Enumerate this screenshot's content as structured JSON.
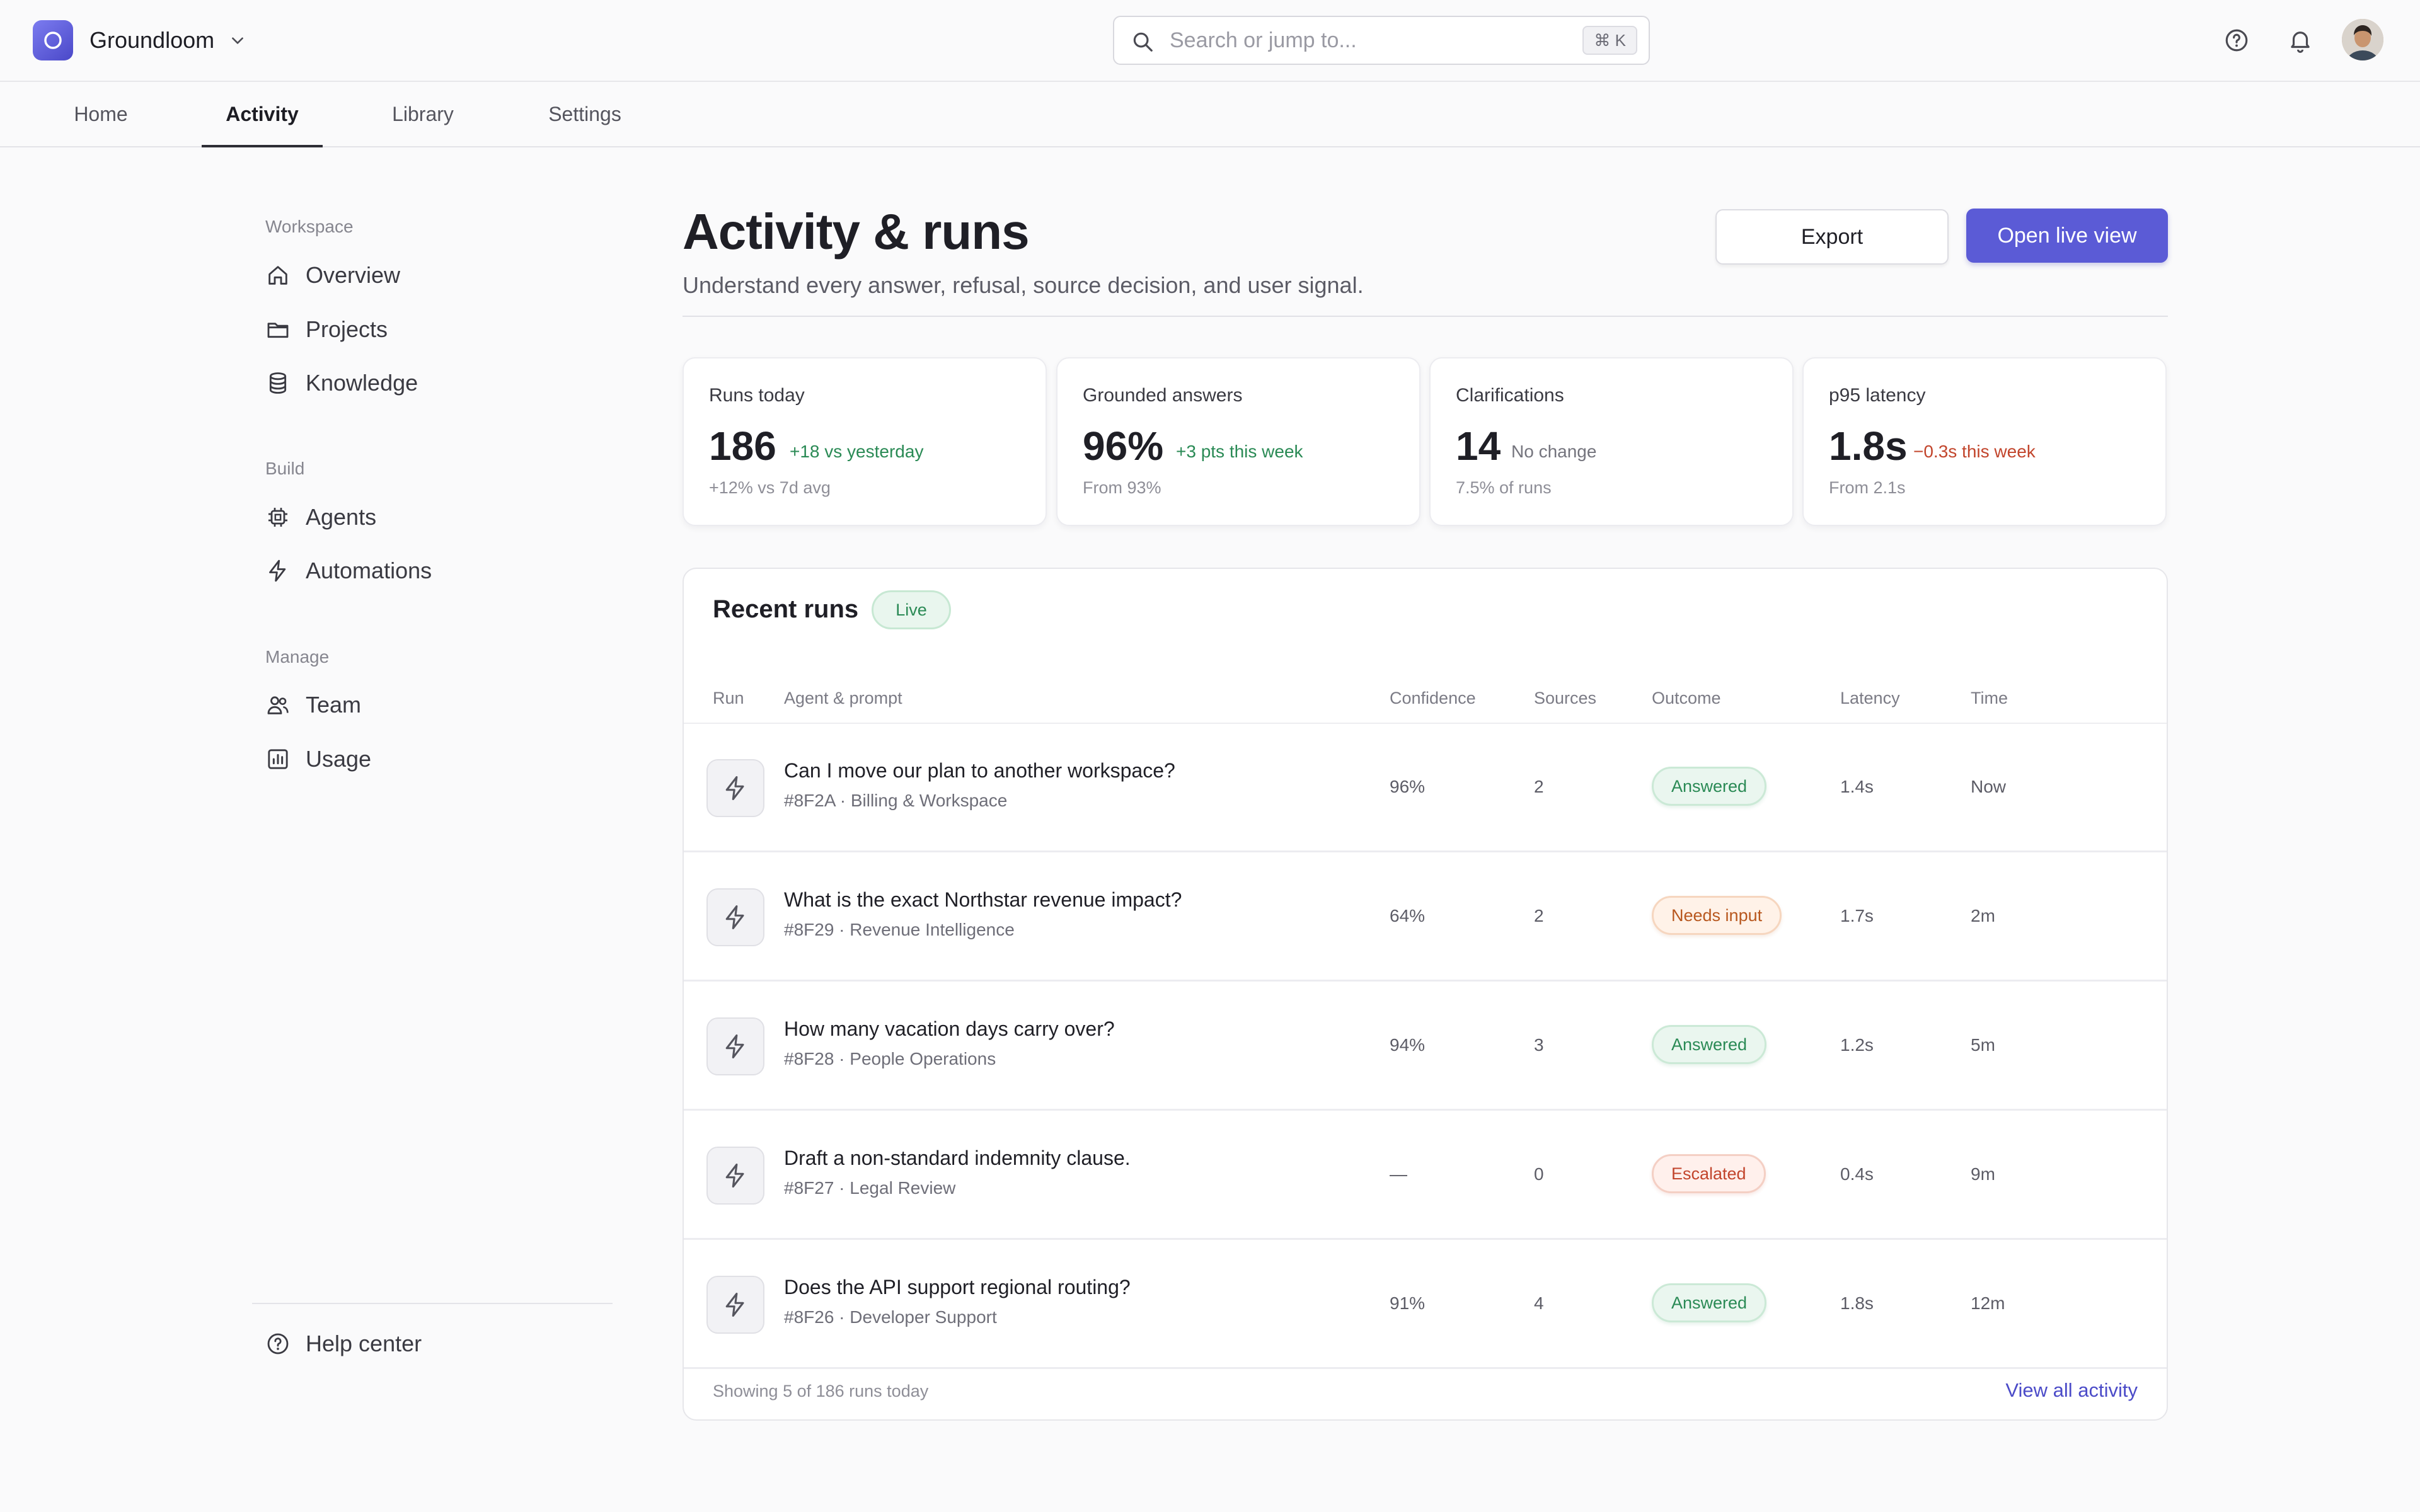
{
  "app": {
    "name": "Groundloom",
    "search_placeholder": "Search or jump to...",
    "search_shortcut": "⌘ K"
  },
  "tabs": [
    {
      "label": "Home",
      "active": false
    },
    {
      "label": "Activity",
      "active": true
    },
    {
      "label": "Library",
      "active": false
    },
    {
      "label": "Settings",
      "active": false
    }
  ],
  "sidebar": {
    "groups": [
      {
        "label": "Workspace",
        "items": [
          {
            "label": "Overview",
            "icon": "home-icon"
          },
          {
            "label": "Projects",
            "icon": "folder-icon"
          },
          {
            "label": "Knowledge",
            "icon": "database-icon"
          }
        ]
      },
      {
        "label": "Build",
        "items": [
          {
            "label": "Agents",
            "icon": "chip-icon"
          },
          {
            "label": "Automations",
            "icon": "bolt-icon"
          }
        ]
      },
      {
        "label": "Manage",
        "items": [
          {
            "label": "Team",
            "icon": "team-icon"
          },
          {
            "label": "Usage",
            "icon": "chart-icon"
          }
        ]
      }
    ],
    "help": {
      "label": "Help center",
      "icon": "help-circle-icon"
    }
  },
  "page": {
    "title": "Activity & runs",
    "subtitle": "Understand every answer, refusal, source decision, and user signal.",
    "export_label": "Export",
    "live_label": "Open live view"
  },
  "stats": [
    {
      "label": "Runs today",
      "value": "186",
      "delta": "+18 vs yesterday",
      "delta_tone": "positive",
      "foot": "+12% vs 7d avg"
    },
    {
      "label": "Grounded answers",
      "value": "96%",
      "delta": "+3 pts this week",
      "delta_tone": "positive",
      "foot": "From 93%"
    },
    {
      "label": "Clarifications",
      "value": "14",
      "delta": "No change",
      "delta_tone": "neutral",
      "foot": "7.5% of runs"
    },
    {
      "label": "p95 latency",
      "value": "1.8s",
      "delta": "−0.3s this week",
      "delta_tone": "negative",
      "foot": "From 2.1s"
    }
  ],
  "runs": {
    "title": "Recent runs",
    "badge": "Live",
    "columns": [
      "Run",
      "Agent & prompt",
      "Confidence",
      "Sources",
      "Outcome",
      "Latency",
      "Time"
    ],
    "rows": [
      {
        "question": "Can I move our plan to another workspace?",
        "meta": "#8F2A · Billing & Workspace",
        "confidence": "96%",
        "sources": "2",
        "outcome": "Answered",
        "outcome_type": "answered",
        "latency": "1.4s",
        "time": "Now"
      },
      {
        "question": "What is the exact Northstar revenue impact?",
        "meta": "#8F29 · Revenue Intelligence",
        "confidence": "64%",
        "sources": "2",
        "outcome": "Needs input",
        "outcome_type": "needs",
        "latency": "1.7s",
        "time": "2m"
      },
      {
        "question": "How many vacation days carry over?",
        "meta": "#8F28 · People Operations",
        "confidence": "94%",
        "sources": "3",
        "outcome": "Answered",
        "outcome_type": "answered",
        "latency": "1.2s",
        "time": "5m"
      },
      {
        "question": "Draft a non-standard indemnity clause.",
        "meta": "#8F27 · Legal Review",
        "confidence": "—",
        "sources": "0",
        "outcome": "Escalated",
        "outcome_type": "escalated",
        "latency": "0.4s",
        "time": "9m"
      },
      {
        "question": "Does the API support regional routing?",
        "meta": "#8F26 · Developer Support",
        "confidence": "91%",
        "sources": "4",
        "outcome": "Answered",
        "outcome_type": "answered",
        "latency": "1.8s",
        "time": "12m"
      }
    ],
    "footer_text": "Showing 5 of 186 runs today",
    "footer_link": "View all activity"
  },
  "colors": {
    "accent": "#5b5bd6",
    "positive": "#2a8a55",
    "negative": "#c2452c",
    "warning": "#b8581f"
  }
}
